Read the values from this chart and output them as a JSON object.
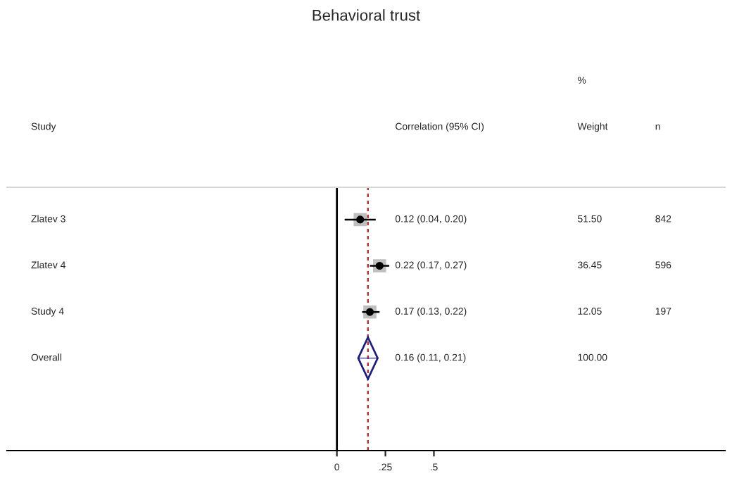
{
  "chart_data": {
    "type": "scatter",
    "title": "Behavioral trust",
    "orientation": "horizontal",
    "categories": [
      "Zlatev 3",
      "Zlatev 4",
      "Study 4",
      "Overall"
    ],
    "series": [
      {
        "marker": "circle",
        "color": "#000000",
        "values": [
          0.12,
          0.22,
          0.17,
          null
        ],
        "errors": [
          [
            0.04,
            0.2
          ],
          [
            0.17,
            0.27
          ],
          [
            0.13,
            0.22
          ],
          null
        ]
      },
      {
        "marker": "diamond",
        "color": "#1f1f7a",
        "values": [
          null,
          null,
          null,
          0.16
        ],
        "errors": [
          null,
          null,
          null,
          [
            0.11,
            0.21
          ]
        ]
      }
    ],
    "xlim": [
      -1.7,
      2.0
    ],
    "xticks": [
      0,
      {
        "value": 0.25,
        "label": ".25"
      },
      {
        "value": 0.5,
        "label": ".5"
      }
    ],
    "ref_lines": [
      {
        "axis": "x",
        "value": 0,
        "color": "#000000",
        "line_style": "solid"
      },
      {
        "axis": "x",
        "value": 0.16,
        "color": "#b03a3a",
        "line_style": "dashed"
      }
    ],
    "annotations": [
      "Study",
      "Correlation (95% CI)",
      "%",
      "Weight",
      "n",
      "0.12 (0.04, 0.20)",
      "51.50",
      "842",
      "0.22 (0.17, 0.27)",
      "36.45",
      "596",
      "0.17 (0.13, 0.22)",
      "12.05",
      "197",
      "0.16 (0.11, 0.21)",
      "100.00"
    ]
  }
}
